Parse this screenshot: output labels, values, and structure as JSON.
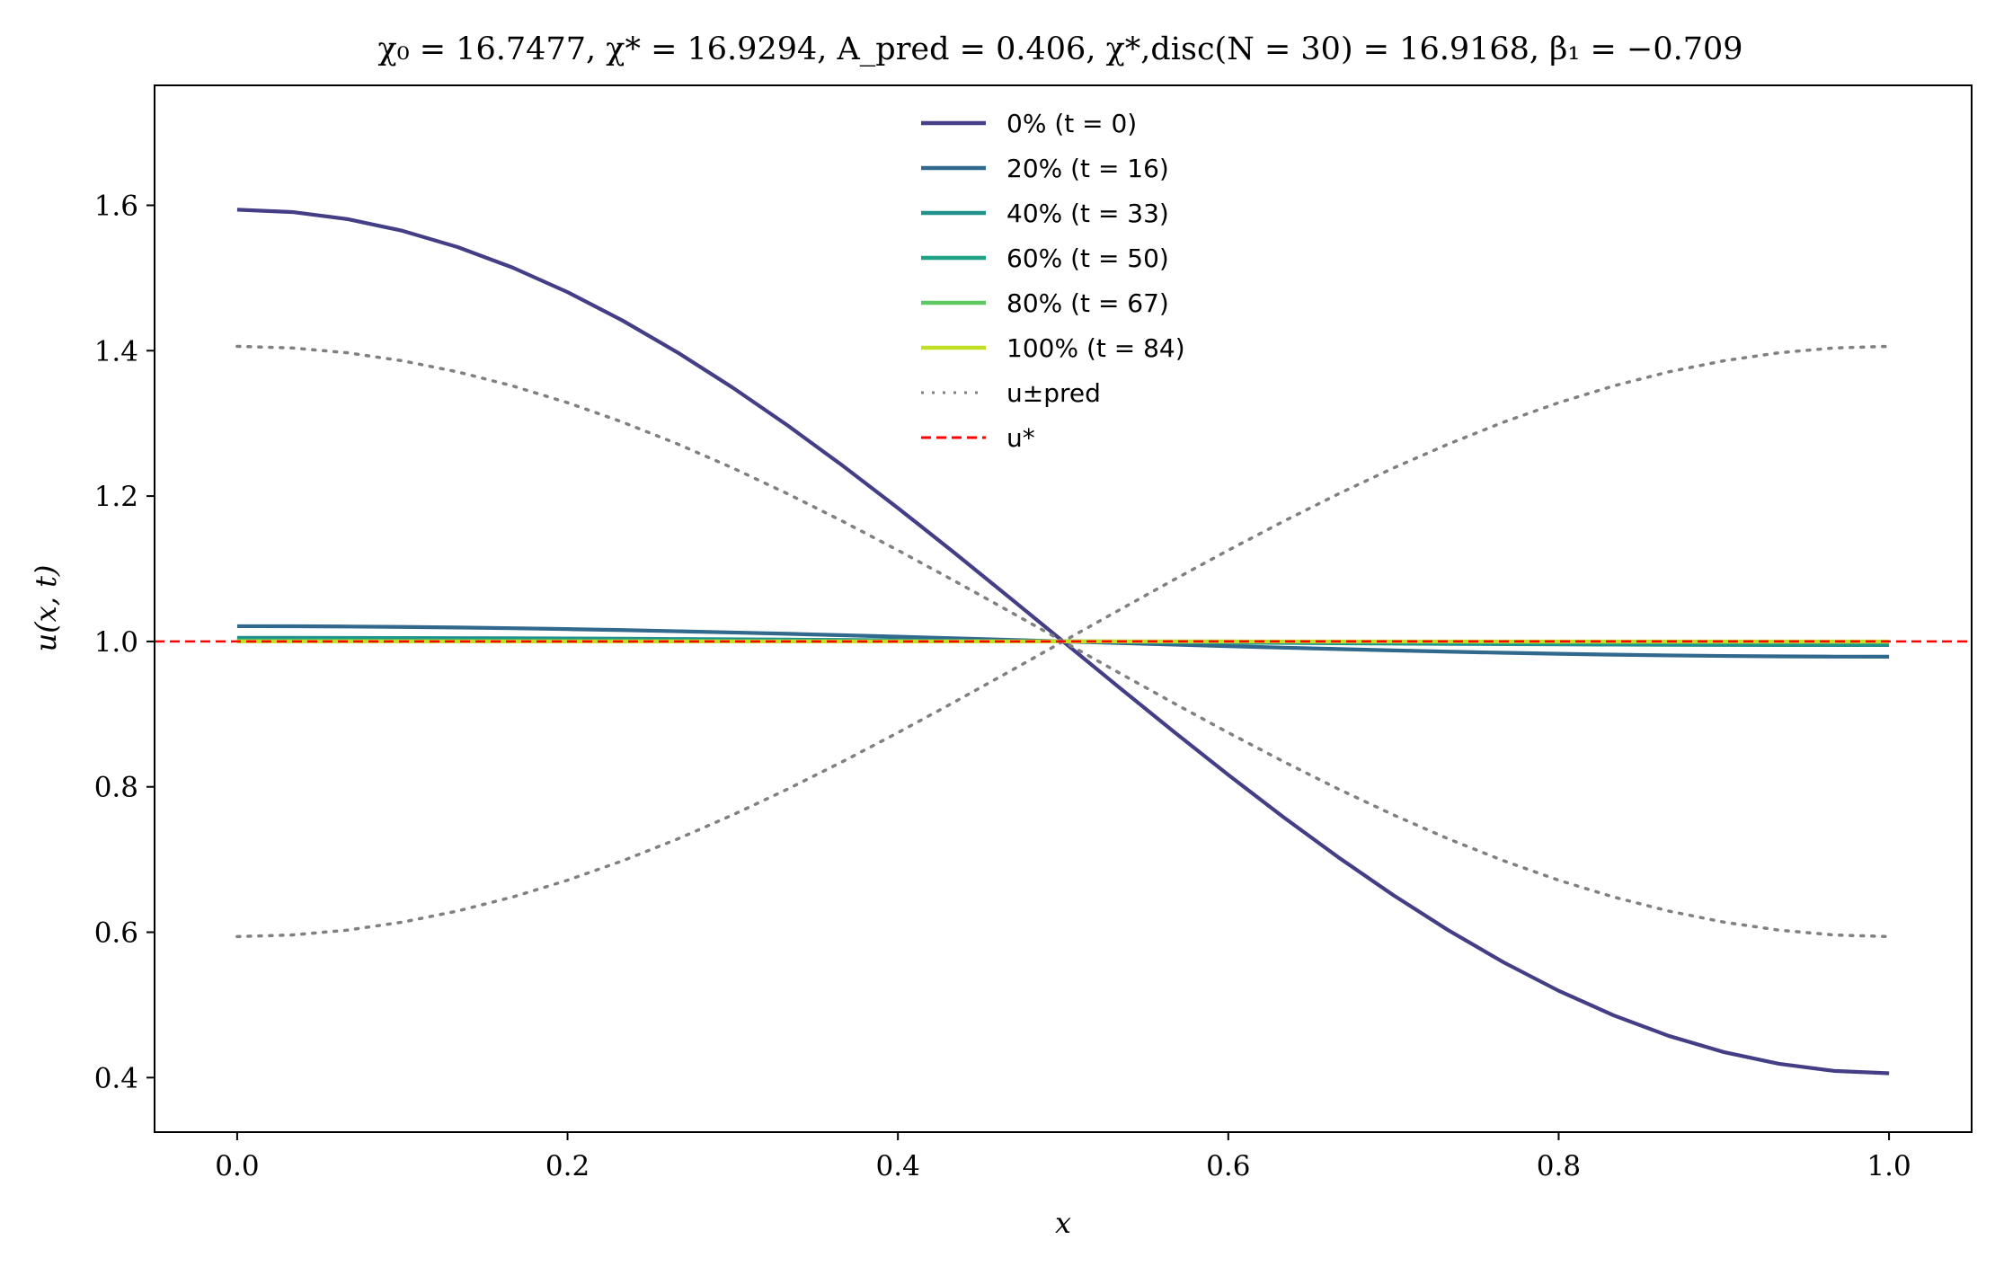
{
  "chart_data": {
    "type": "line",
    "title": "χ₀ = 16.7477,  χ* = 16.9294,  A_pred = 0.406,  χ*,disc(N = 30) = 16.9168,  β₁ = −0.709",
    "xlabel": "x",
    "ylabel": "u(x, t)",
    "xlim": [
      -0.05,
      1.05
    ],
    "ylim": [
      0.325,
      1.765
    ],
    "x_ticks": [
      "0.0",
      "0.2",
      "0.4",
      "0.6",
      "0.8",
      "1.0"
    ],
    "y_ticks": [
      "0.4",
      "0.6",
      "0.8",
      "1.0",
      "1.2",
      "1.4",
      "1.6"
    ],
    "grid": false,
    "legend_position": "top-center",
    "x": [
      0.0,
      0.0333,
      0.0667,
      0.1,
      0.1333,
      0.1667,
      0.2,
      0.2333,
      0.2667,
      0.3,
      0.3333,
      0.3667,
      0.4,
      0.4333,
      0.4667,
      0.5,
      0.5333,
      0.5667,
      0.6,
      0.6333,
      0.6667,
      0.7,
      0.7333,
      0.7667,
      0.8,
      0.8333,
      0.8667,
      0.9,
      0.9333,
      0.9667,
      1.0
    ],
    "series": [
      {
        "name": "0% (t = 0)",
        "color": "#433e85",
        "style": "solid",
        "amplitude": 0.594
      },
      {
        "name": "20% (t = 16)",
        "color": "#31688e",
        "style": "solid",
        "amplitude": 0.021
      },
      {
        "name": "40% (t = 33)",
        "color": "#21918c",
        "style": "solid",
        "amplitude": 0.005
      },
      {
        "name": "60% (t = 50)",
        "color": "#1fa187",
        "style": "solid",
        "amplitude": 0.002
      },
      {
        "name": "80% (t = 67)",
        "color": "#5ec962",
        "style": "solid",
        "amplitude": 0.0005
      },
      {
        "name": "100% (t = 84)",
        "color": "#c2df23",
        "style": "solid",
        "amplitude": 0.0001
      },
      {
        "name": "u±pred",
        "color": "#808080",
        "style": "dotted",
        "amplitude": 0.406
      },
      {
        "name": "u*",
        "color": "#ff0000",
        "style": "dashed",
        "value": 1.0
      }
    ]
  }
}
